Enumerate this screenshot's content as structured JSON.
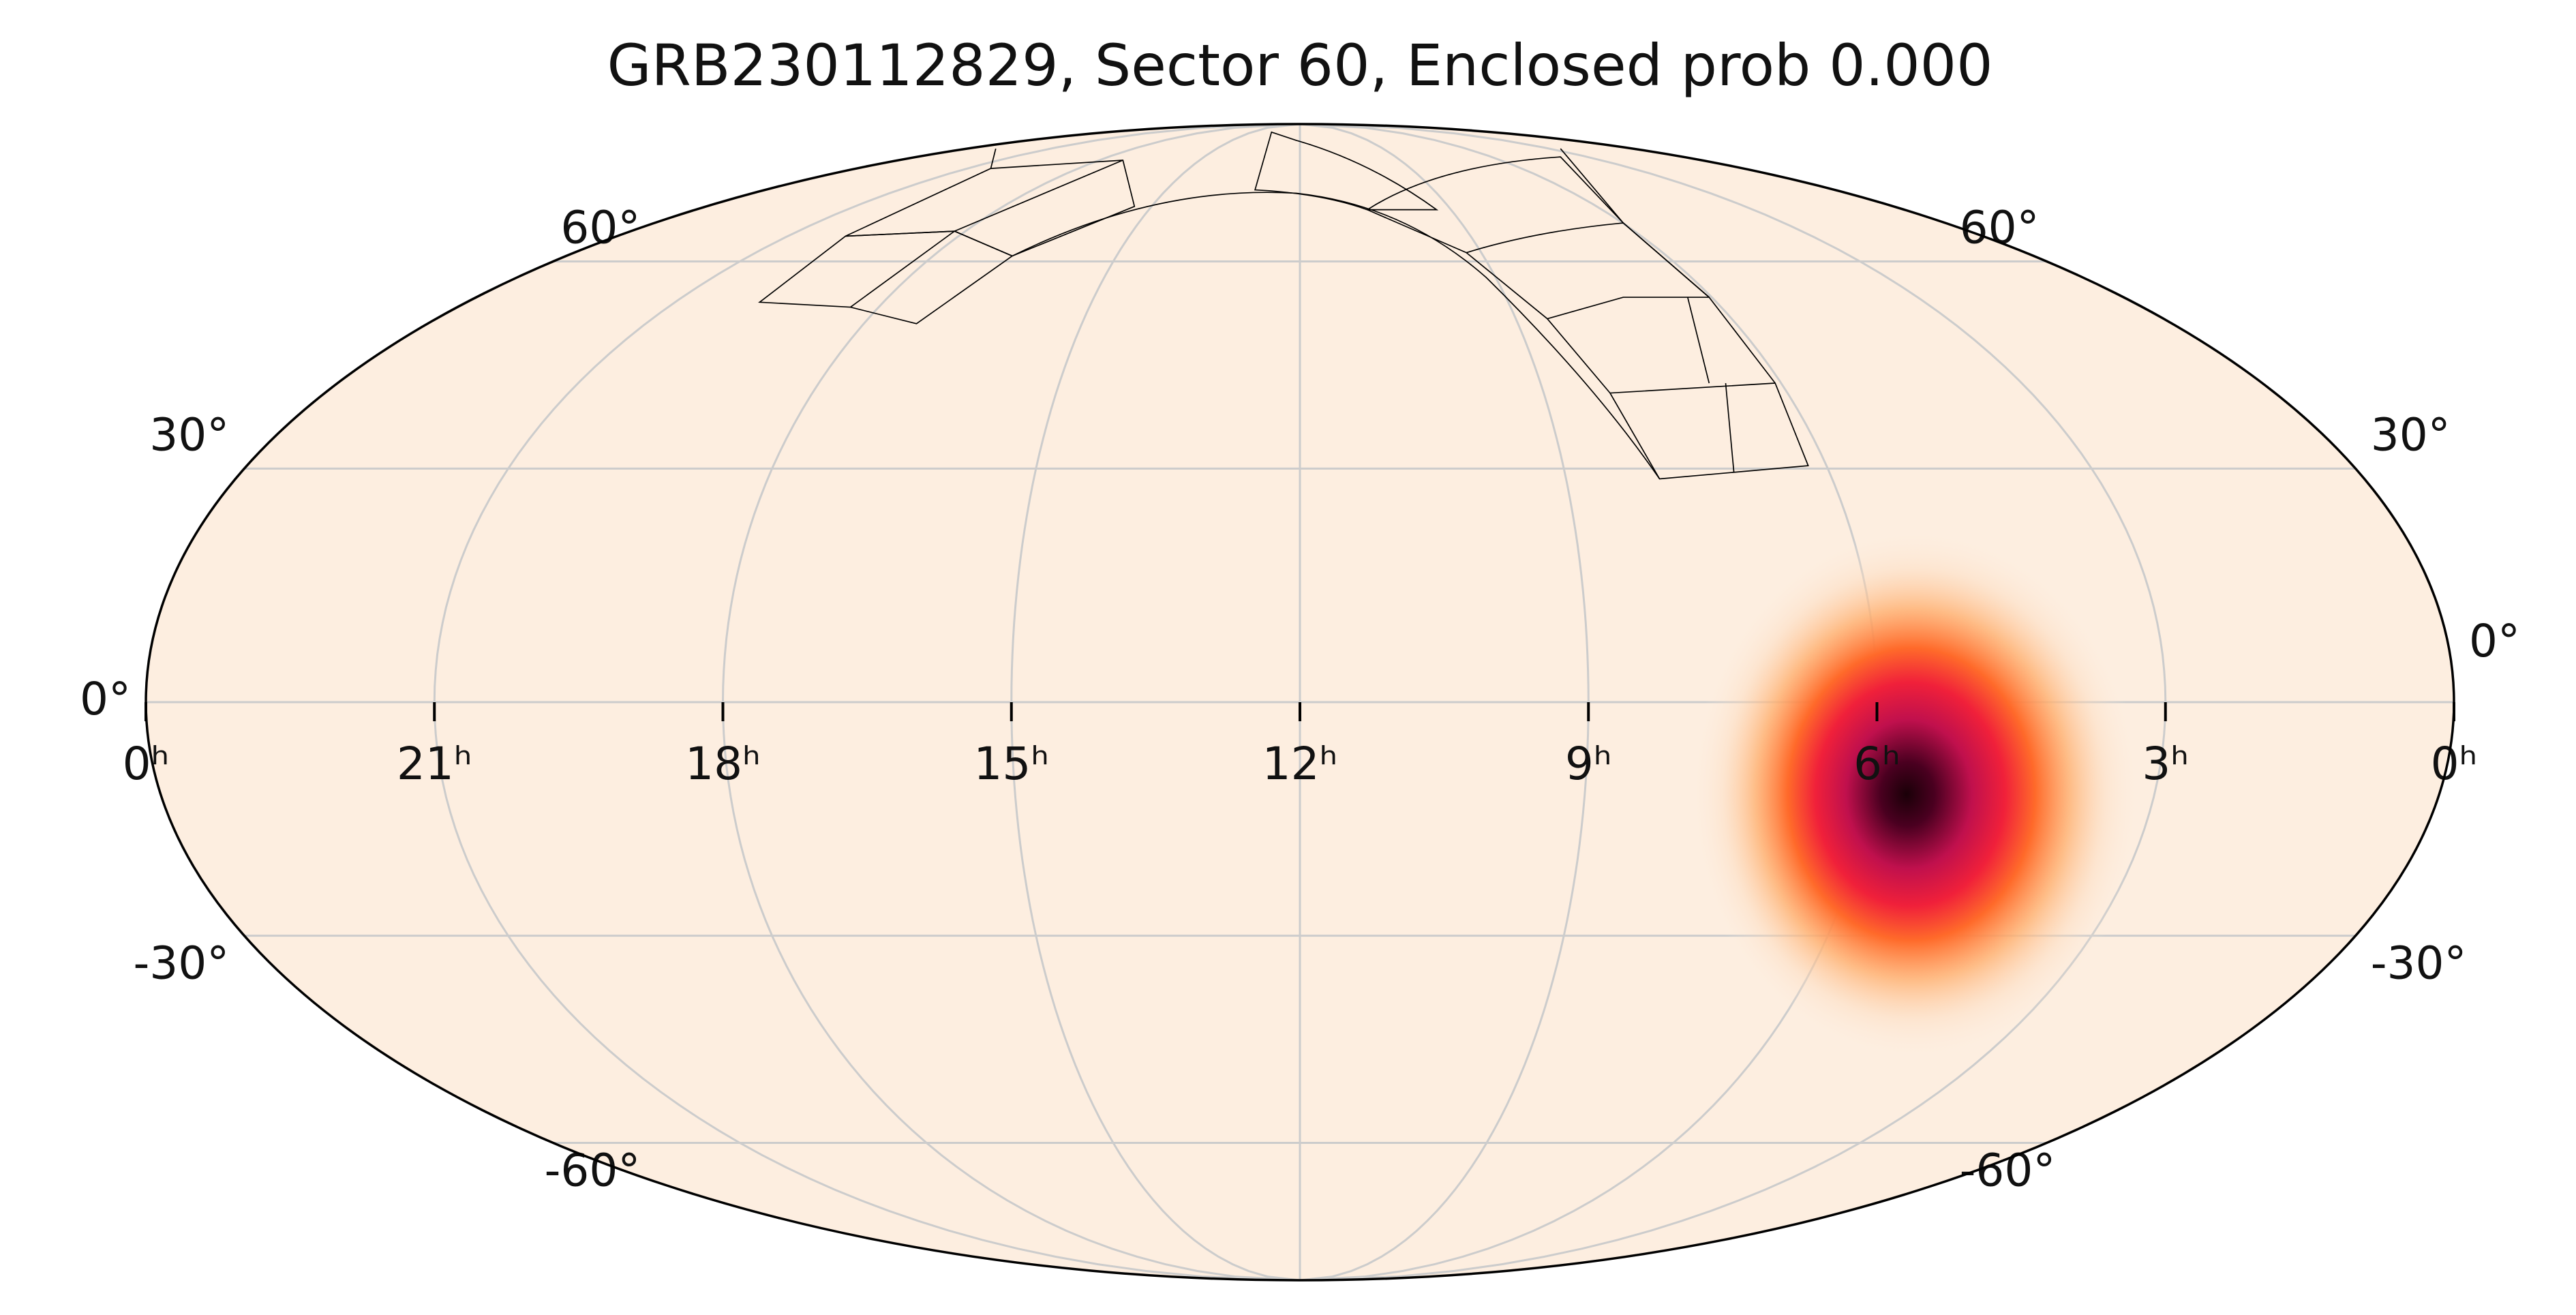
{
  "chart_data": {
    "type": "skymap",
    "projection": "mollweide",
    "title": "GRB230112829, Sector 60, Enclosed prob 0.000",
    "xlim": [
      24,
      0
    ],
    "ylim": [
      -90,
      90
    ],
    "xticks": [
      {
        "value": 24,
        "label": "0ʰ"
      },
      {
        "value": 21,
        "label": "21ʰ"
      },
      {
        "value": 18,
        "label": "18ʰ"
      },
      {
        "value": 15,
        "label": "15ʰ"
      },
      {
        "value": 12,
        "label": "12ʰ"
      },
      {
        "value": 9,
        "label": "9ʰ"
      },
      {
        "value": 6,
        "label": "6ʰ"
      },
      {
        "value": 3,
        "label": "3ʰ"
      },
      {
        "value": 0,
        "label": "0ʰ"
      }
    ],
    "yticks": [
      {
        "value": -60,
        "label": "-60°"
      },
      {
        "value": -30,
        "label": "-30°"
      },
      {
        "value": 0,
        "label": "0°"
      },
      {
        "value": 30,
        "label": "30°"
      },
      {
        "value": 60,
        "label": "60°"
      }
    ],
    "grid": true,
    "background": "#fdeee0",
    "grid_color": "#cccccc"
  }
}
